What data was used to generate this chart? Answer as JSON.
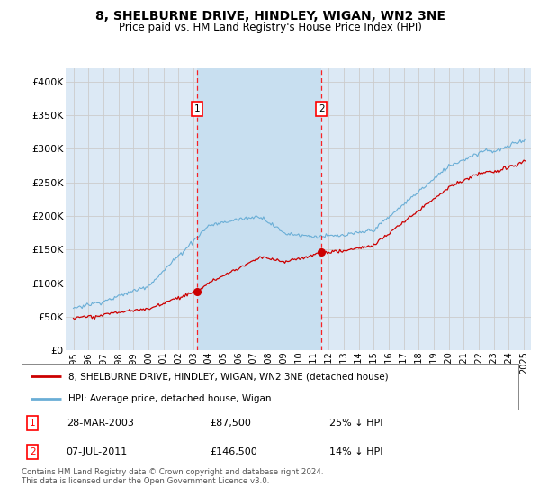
{
  "title": "8, SHELBURNE DRIVE, HINDLEY, WIGAN, WN2 3NE",
  "subtitle": "Price paid vs. HM Land Registry's House Price Index (HPI)",
  "background_color": "#ffffff",
  "plot_bg_color": "#dce9f5",
  "highlight_bg_color": "#c8dff0",
  "grid_color": "#cccccc",
  "ylim": [
    0,
    420000
  ],
  "yticks": [
    0,
    50000,
    100000,
    150000,
    200000,
    250000,
    300000,
    350000,
    400000
  ],
  "ytick_labels": [
    "£0",
    "£50K",
    "£100K",
    "£150K",
    "£200K",
    "£250K",
    "£300K",
    "£350K",
    "£400K"
  ],
  "sale1_date_num": 2003.24,
  "sale1_price": 87500,
  "sale1_date_str": "28-MAR-2003",
  "sale1_pct": "25% ↓ HPI",
  "sale2_date_num": 2011.52,
  "sale2_price": 146500,
  "sale2_date_str": "07-JUL-2011",
  "sale2_pct": "14% ↓ HPI",
  "hpi_line_color": "#6aaed6",
  "price_line_color": "#cc0000",
  "legend_label_price": "8, SHELBURNE DRIVE, HINDLEY, WIGAN, WN2 3NE (detached house)",
  "legend_label_hpi": "HPI: Average price, detached house, Wigan",
  "footnote": "Contains HM Land Registry data © Crown copyright and database right 2024.\nThis data is licensed under the Open Government Licence v3.0.",
  "xtick_years": [
    1995,
    1996,
    1997,
    1998,
    1999,
    2000,
    2001,
    2002,
    2003,
    2004,
    2005,
    2006,
    2007,
    2008,
    2009,
    2010,
    2011,
    2012,
    2013,
    2014,
    2015,
    2016,
    2017,
    2018,
    2019,
    2020,
    2021,
    2022,
    2023,
    2024,
    2025
  ],
  "xlim_left": 1994.5,
  "xlim_right": 2025.5
}
